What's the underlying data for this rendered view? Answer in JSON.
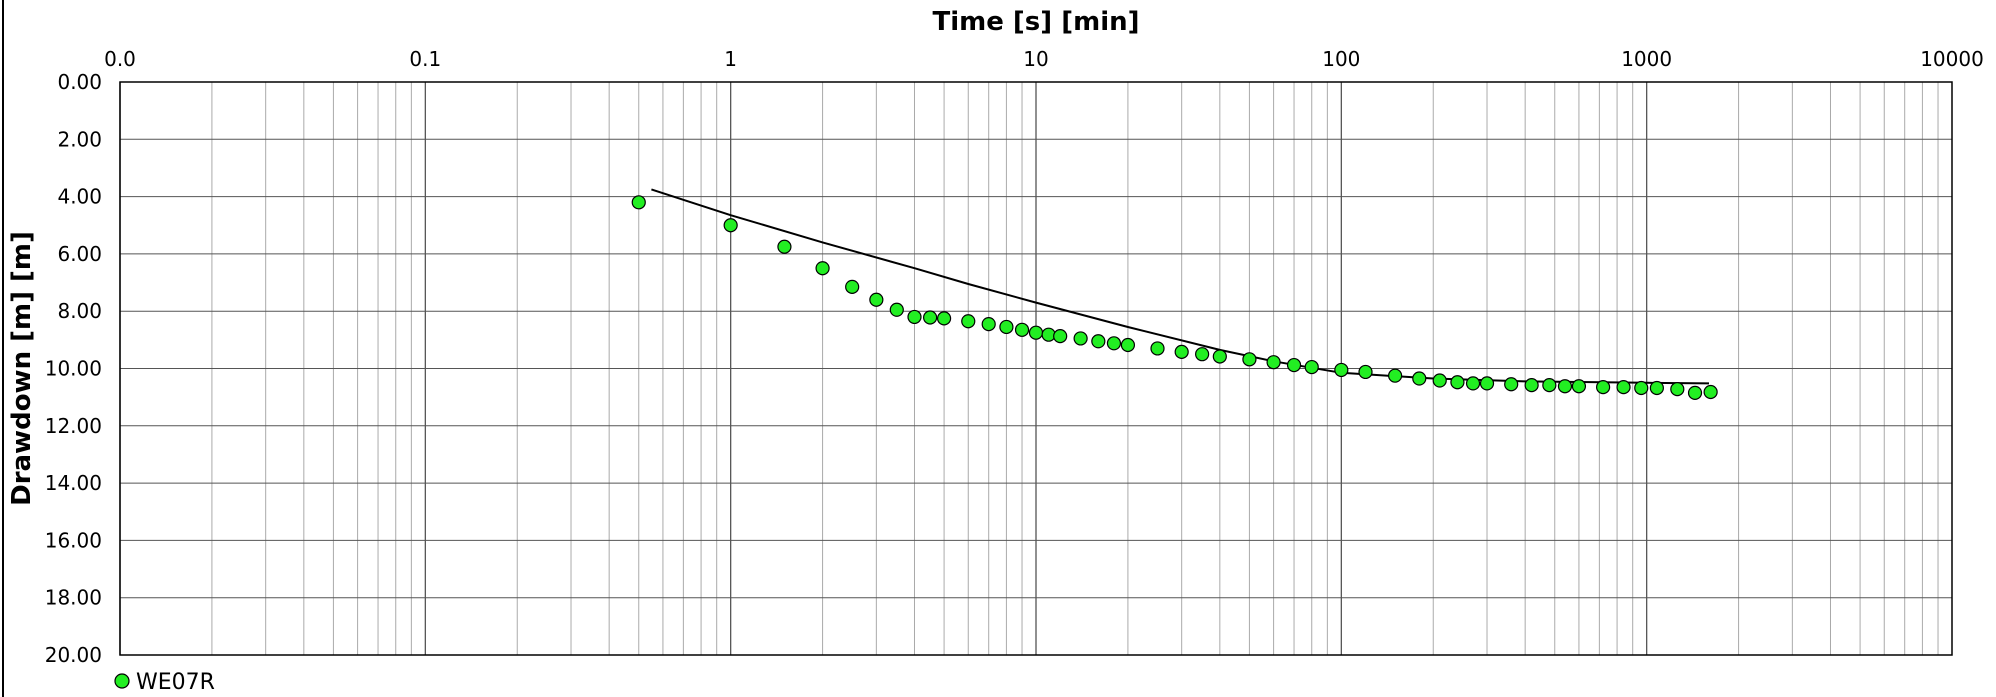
{
  "chart_data": {
    "type": "scatter",
    "title": "",
    "xlabel": "Time [s] [min]",
    "ylabel": "Drawdown [m] [m]",
    "x_scale": "log",
    "x_axis_position": "top",
    "y_inverted": true,
    "xlim": [
      0.01,
      10000
    ],
    "ylim": [
      0,
      20
    ],
    "x_tick_labels": [
      {
        "value": 0.01,
        "label": "0.0"
      },
      {
        "value": 0.1,
        "label": "0.1"
      },
      {
        "value": 1,
        "label": "1"
      },
      {
        "value": 10,
        "label": "10"
      },
      {
        "value": 100,
        "label": "100"
      },
      {
        "value": 1000,
        "label": "1000"
      },
      {
        "value": 10000,
        "label": "10000"
      }
    ],
    "y_tick_labels": [
      "0.00",
      "2.00",
      "4.00",
      "6.00",
      "8.00",
      "10.00",
      "12.00",
      "14.00",
      "16.00",
      "18.00",
      "20.00"
    ],
    "grid": true,
    "legend_position": "bottom-left",
    "colors": {
      "points": "#22ee22",
      "point_edge": "#000000",
      "fit_line": "#000000",
      "grid_major": "#555555",
      "grid_minor": "#aaaaaa"
    },
    "series": [
      {
        "name": "WE07R",
        "kind": "points",
        "x": [
          0.5,
          1,
          1.5,
          2,
          2.5,
          3,
          3.5,
          4,
          4.5,
          5,
          6,
          7,
          8,
          9,
          10,
          11,
          12,
          14,
          16,
          18,
          20,
          25,
          30,
          35,
          40,
          50,
          60,
          70,
          80,
          100,
          120,
          150,
          180,
          210,
          240,
          270,
          300,
          360,
          420,
          480,
          540,
          600,
          720,
          840,
          960,
          1080,
          1260,
          1440,
          1620
        ],
        "y": [
          4.2,
          5.0,
          5.75,
          6.5,
          7.15,
          7.6,
          7.95,
          8.2,
          8.22,
          8.25,
          8.35,
          8.45,
          8.55,
          8.65,
          8.75,
          8.82,
          8.87,
          8.95,
          9.05,
          9.12,
          9.18,
          9.3,
          9.42,
          9.5,
          9.58,
          9.68,
          9.78,
          9.88,
          9.95,
          10.05,
          10.12,
          10.25,
          10.35,
          10.42,
          10.48,
          10.52,
          10.52,
          10.55,
          10.58,
          10.58,
          10.62,
          10.62,
          10.65,
          10.65,
          10.68,
          10.68,
          10.72,
          10.85,
          10.82
        ]
      },
      {
        "name": "",
        "kind": "line",
        "x": [
          0.55,
          1,
          2,
          4,
          6,
          10,
          20,
          40,
          60,
          100,
          200,
          400,
          1000,
          1600
        ],
        "y": [
          3.75,
          4.65,
          5.6,
          6.5,
          7.05,
          7.7,
          8.55,
          9.35,
          9.75,
          10.15,
          10.35,
          10.45,
          10.5,
          10.52
        ]
      }
    ],
    "legend": [
      {
        "label": "WE07R",
        "marker": "circle"
      }
    ]
  }
}
